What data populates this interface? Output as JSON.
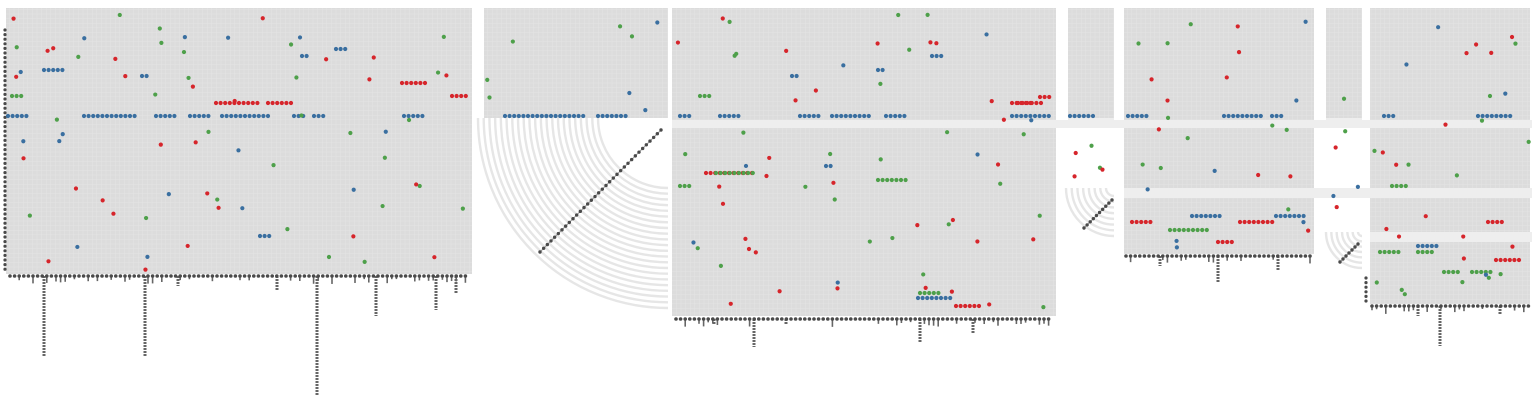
{
  "figure": {
    "kind": "sequence-matrix-diagram",
    "text_labels": []
  },
  "colors": {
    "background": "#ffffff",
    "panel": "#dcdcdc",
    "grid": "#ebebeb",
    "arc": "#e6e6e6",
    "blue": "#3a6fa0",
    "red": "#d6252b",
    "green": "#4ea04a",
    "node": "#4a4a4a",
    "stem": "#666666"
  },
  "legend": []
}
